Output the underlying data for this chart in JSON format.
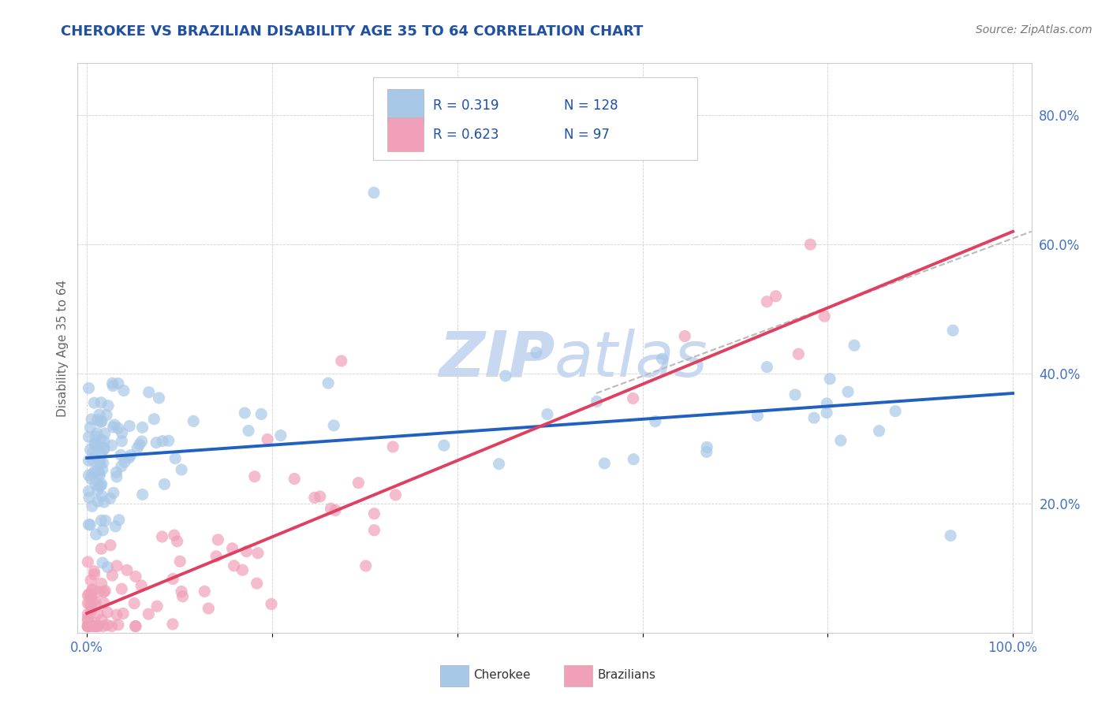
{
  "title": "CHEROKEE VS BRAZILIAN DISABILITY AGE 35 TO 64 CORRELATION CHART",
  "source_text": "Source: ZipAtlas.com",
  "ylabel": "Disability Age 35 to 64",
  "legend_cherokee": "Cherokee",
  "legend_brazilians": "Brazilians",
  "cherokee_R": "0.319",
  "cherokee_N": "128",
  "brazilians_R": "0.623",
  "brazilians_N": " 97",
  "cherokee_color": "#A8C8E8",
  "brazilians_color": "#F0A0B8",
  "cherokee_line_color": "#2060C0",
  "brazilians_line_color": "#E04060",
  "dashed_line_color": "#BBBBBB",
  "title_color": "#2050A0",
  "axis_label_color": "#4472C4",
  "watermark_color": "#C8D8F0",
  "legend_text_color": "#2050A0",
  "background_color": "#FFFFFF",
  "ytick_vals": [
    0.2,
    0.4,
    0.6,
    0.8
  ],
  "xlim": [
    0.0,
    1.0
  ],
  "ylim": [
    0.0,
    0.88
  ]
}
